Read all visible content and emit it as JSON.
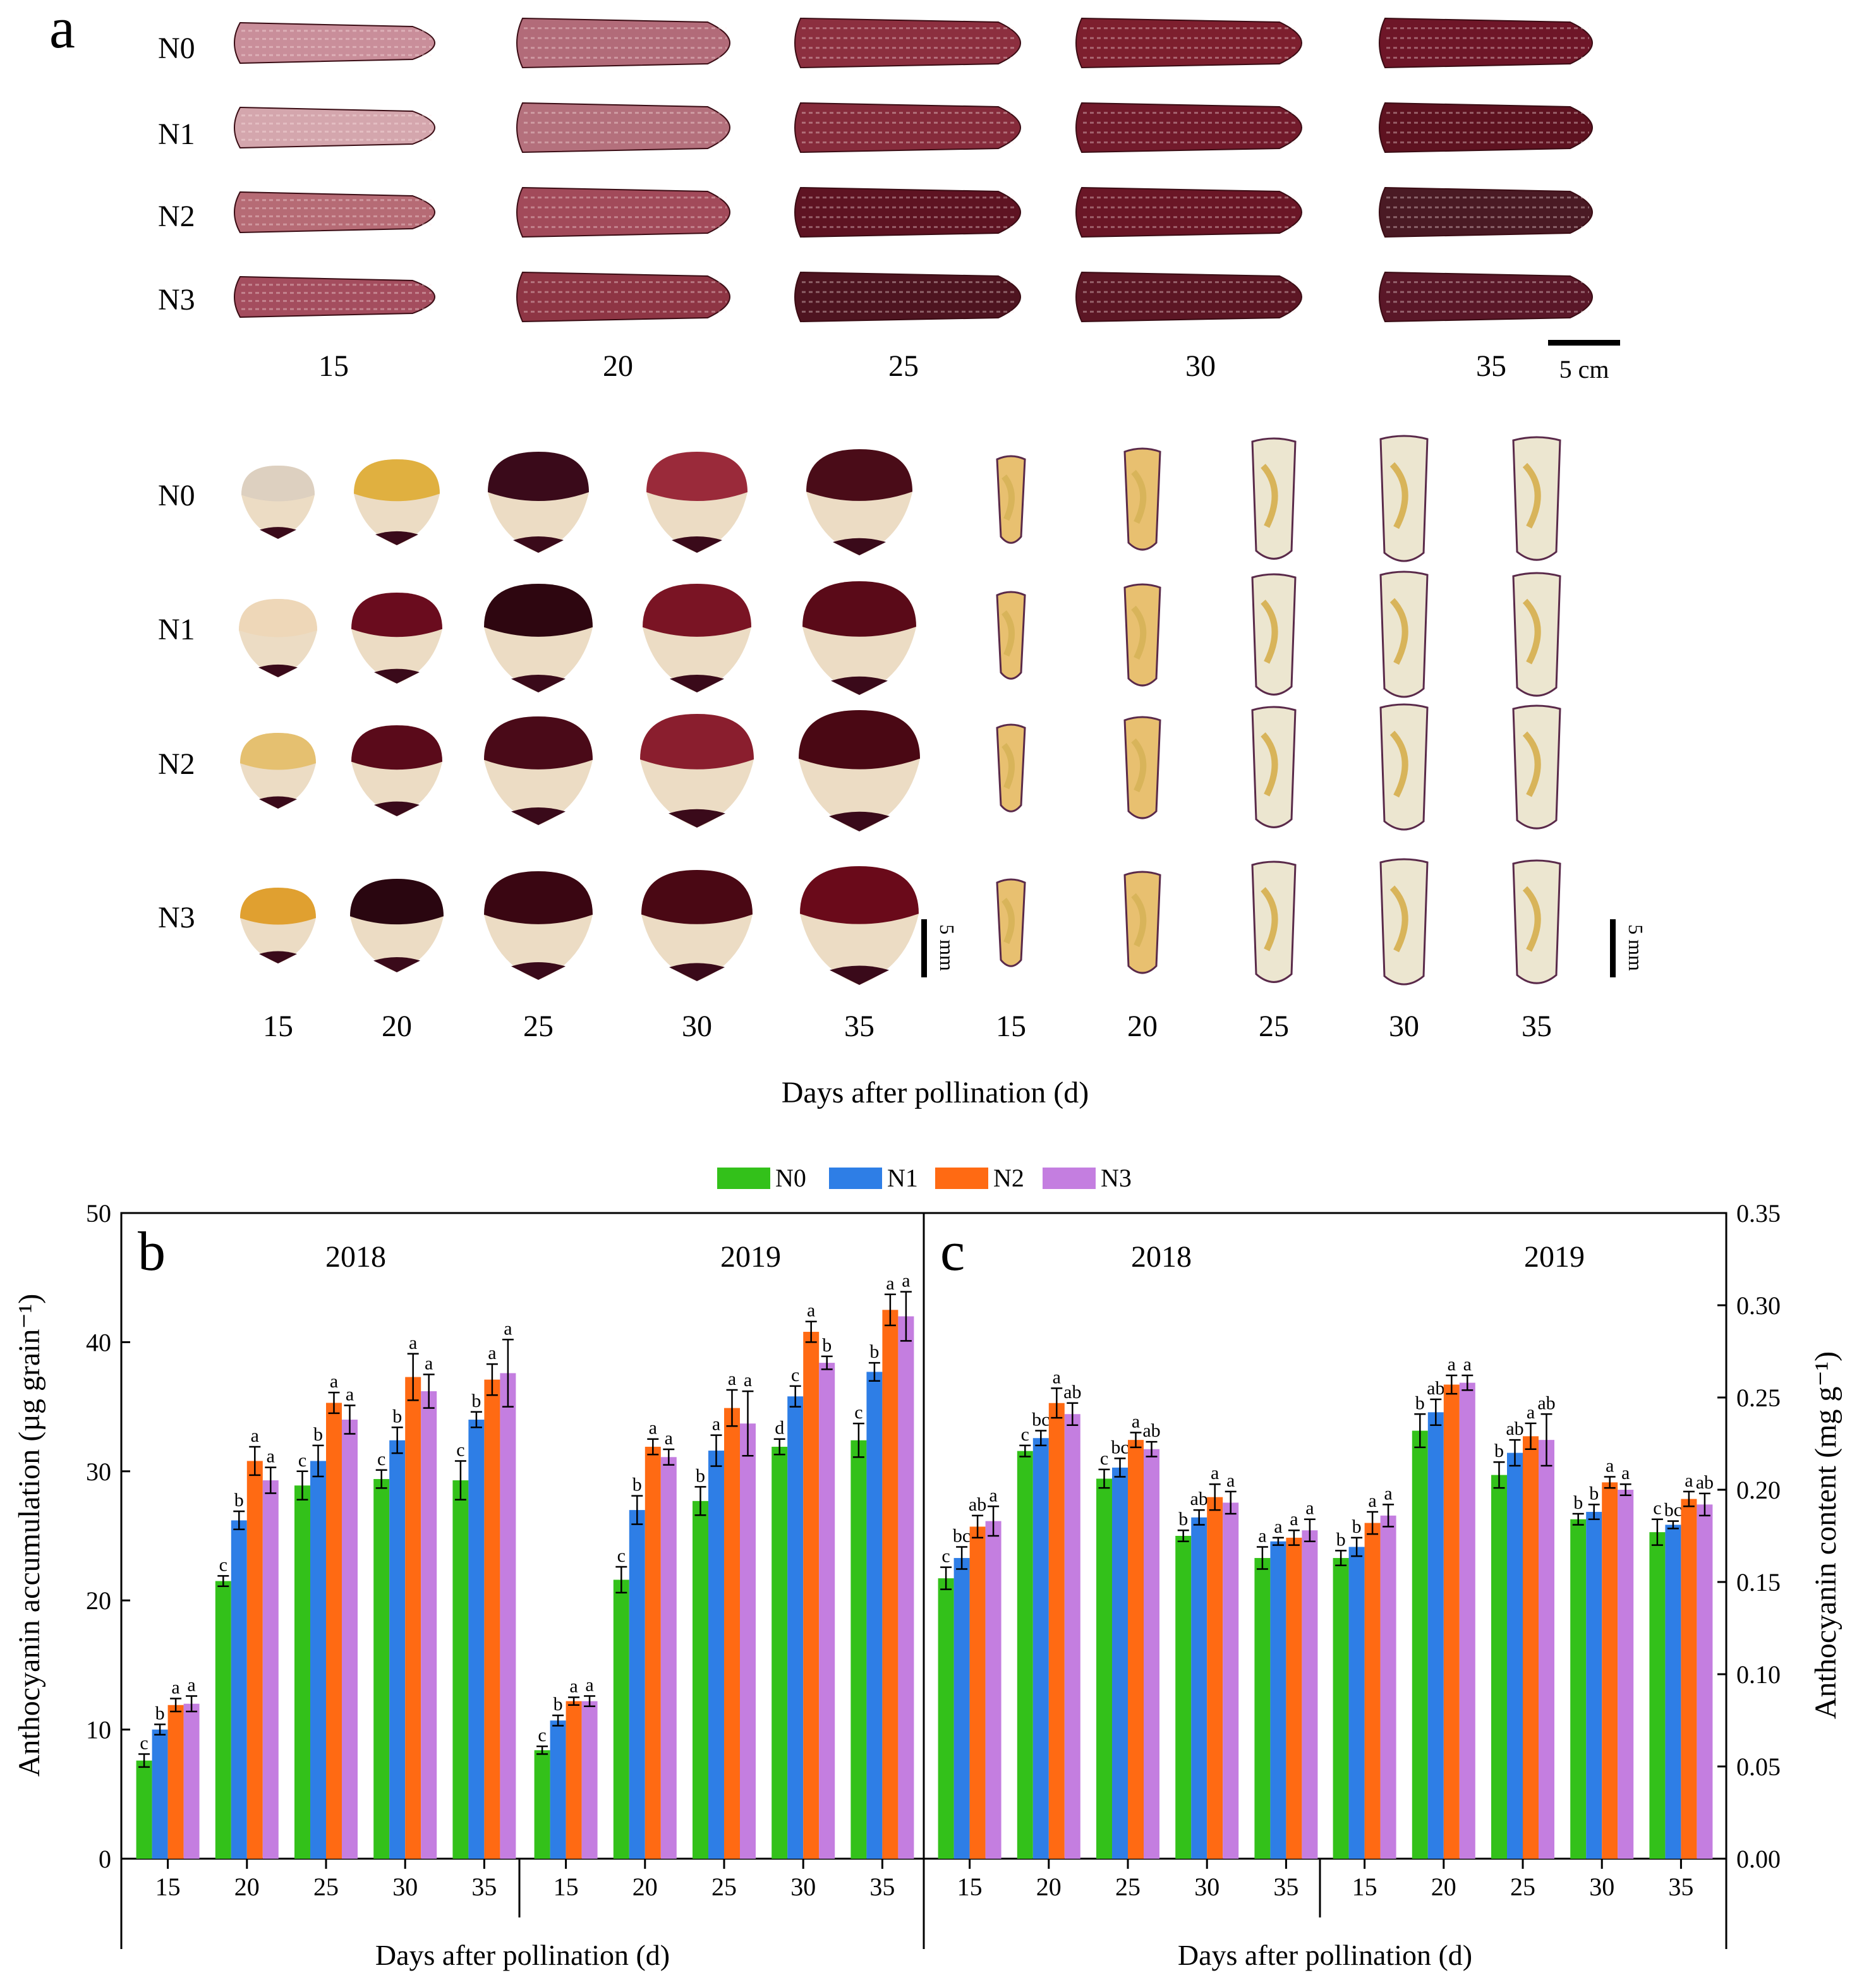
{
  "colors": {
    "N0": "#33c11a",
    "N1": "#2e7ee6",
    "N2": "#ff6a13",
    "N3": "#c47ee0"
  },
  "panel_a": {
    "letter": "a",
    "rows": [
      "N0",
      "N1",
      "N2",
      "N3"
    ],
    "days": [
      "15",
      "20",
      "25",
      "30",
      "35"
    ],
    "ear_scale": "5 cm",
    "kernel_scale": "5 mm",
    "xlabel": "Days after pollination (d)"
  },
  "legend": [
    "N0",
    "N1",
    "N2",
    "N3"
  ],
  "chart_data": [
    {
      "type": "bar",
      "panel": "b",
      "ylabel": "Anthocyanin accumulation  (µg grain⁻¹)",
      "xlabel": "Days after pollination (d)",
      "ylim": [
        0,
        50
      ],
      "yticks": [
        "0",
        "10",
        "20",
        "30",
        "40",
        "50"
      ],
      "groups": [
        {
          "year": "2018",
          "categories": [
            "15",
            "20",
            "25",
            "30",
            "35"
          ],
          "series": [
            {
              "name": "N0",
              "values": [
                7.6,
                21.5,
                28.9,
                29.4,
                29.3
              ],
              "errors": [
                0.5,
                0.4,
                1.1,
                0.7,
                1.5
              ],
              "letters": [
                "c",
                "c",
                "c",
                "c",
                "c"
              ]
            },
            {
              "name": "N1",
              "values": [
                10.0,
                26.2,
                30.8,
                32.4,
                34.0
              ],
              "errors": [
                0.4,
                0.7,
                1.2,
                1.0,
                0.6
              ],
              "letters": [
                "b",
                "b",
                "b",
                "b",
                "b"
              ]
            },
            {
              "name": "N2",
              "values": [
                11.9,
                30.8,
                35.3,
                37.3,
                37.1
              ],
              "errors": [
                0.5,
                1.1,
                0.8,
                1.8,
                1.2
              ],
              "letters": [
                "a",
                "a",
                "a",
                "a",
                "a"
              ]
            },
            {
              "name": "N3",
              "values": [
                12.0,
                29.3,
                34.0,
                36.2,
                37.6
              ],
              "errors": [
                0.6,
                1.0,
                1.1,
                1.3,
                2.6
              ],
              "letters": [
                "a",
                "a",
                "a",
                "a",
                "a"
              ]
            }
          ]
        },
        {
          "year": "2019",
          "categories": [
            "15",
            "20",
            "25",
            "30",
            "35"
          ],
          "series": [
            {
              "name": "N0",
              "values": [
                8.4,
                21.6,
                27.7,
                31.9,
                32.4
              ],
              "errors": [
                0.3,
                1.0,
                1.1,
                0.6,
                1.3
              ],
              "letters": [
                "c",
                "c",
                "b",
                "d",
                "c"
              ]
            },
            {
              "name": "N1",
              "values": [
                10.7,
                27.0,
                31.6,
                35.8,
                37.7
              ],
              "errors": [
                0.4,
                1.1,
                1.2,
                0.8,
                0.7
              ],
              "letters": [
                "b",
                "b",
                "a",
                "c",
                "b"
              ]
            },
            {
              "name": "N2",
              "values": [
                12.2,
                31.9,
                34.9,
                40.8,
                42.5
              ],
              "errors": [
                0.3,
                0.6,
                1.4,
                0.8,
                1.2
              ],
              "letters": [
                "a",
                "a",
                "a",
                "a",
                "a"
              ]
            },
            {
              "name": "N3",
              "values": [
                12.2,
                31.1,
                33.7,
                38.4,
                42.0
              ],
              "errors": [
                0.4,
                0.6,
                2.5,
                0.5,
                1.9
              ],
              "letters": [
                "a",
                "a",
                "a",
                "b",
                "a"
              ]
            }
          ]
        }
      ]
    },
    {
      "type": "bar",
      "panel": "c",
      "ylabel": "Anthocyanin content (mg g⁻¹)",
      "xlabel": "Days after pollination (d)",
      "ylim": [
        0,
        0.35
      ],
      "yticks": [
        "0.00",
        "0.05",
        "0.10",
        "0.15",
        "0.20",
        "0.25",
        "0.30",
        "0.35"
      ],
      "groups": [
        {
          "year": "2018",
          "categories": [
            "15",
            "20",
            "25",
            "30",
            "35"
          ],
          "series": [
            {
              "name": "N0",
              "values": [
                0.152,
                0.221,
                0.206,
                0.175,
                0.163
              ],
              "errors": [
                0.006,
                0.003,
                0.005,
                0.003,
                0.006
              ],
              "letters": [
                "c",
                "c",
                "c",
                "b",
                "a"
              ]
            },
            {
              "name": "N1",
              "values": [
                0.163,
                0.228,
                0.212,
                0.185,
                0.172
              ],
              "errors": [
                0.006,
                0.004,
                0.005,
                0.004,
                0.002
              ],
              "letters": [
                "bc",
                "bc",
                "bc",
                "ab",
                "a"
              ]
            },
            {
              "name": "N2",
              "values": [
                0.18,
                0.247,
                0.227,
                0.196,
                0.174
              ],
              "errors": [
                0.006,
                0.008,
                0.004,
                0.007,
                0.004
              ],
              "letters": [
                "ab",
                "a",
                "a",
                "a",
                "a"
              ]
            },
            {
              "name": "N3",
              "values": [
                0.183,
                0.241,
                0.222,
                0.193,
                0.178
              ],
              "errors": [
                0.008,
                0.006,
                0.004,
                0.006,
                0.006
              ],
              "letters": [
                "a",
                "ab",
                "ab",
                "a",
                "a"
              ]
            }
          ]
        },
        {
          "year": "2019",
          "categories": [
            "15",
            "20",
            "25",
            "30",
            "35"
          ],
          "series": [
            {
              "name": "N0",
              "values": [
                0.163,
                0.232,
                0.208,
                0.184,
                0.177
              ],
              "errors": [
                0.004,
                0.009,
                0.007,
                0.003,
                0.007
              ],
              "letters": [
                "b",
                "b",
                "b",
                "b",
                "c"
              ]
            },
            {
              "name": "N1",
              "values": [
                0.169,
                0.242,
                0.22,
                0.188,
                0.181
              ],
              "errors": [
                0.005,
                0.007,
                0.007,
                0.004,
                0.002
              ],
              "letters": [
                "b",
                "ab",
                "ab",
                "b",
                "bc"
              ]
            },
            {
              "name": "N2",
              "values": [
                0.182,
                0.257,
                0.229,
                0.204,
                0.195
              ],
              "errors": [
                0.006,
                0.005,
                0.007,
                0.003,
                0.004
              ],
              "letters": [
                "a",
                "a",
                "a",
                "a",
                "a"
              ]
            },
            {
              "name": "N3",
              "values": [
                0.186,
                0.258,
                0.227,
                0.2,
                0.192
              ],
              "errors": [
                0.006,
                0.004,
                0.014,
                0.003,
                0.006
              ],
              "letters": [
                "a",
                "a",
                "ab",
                "a",
                "ab"
              ]
            }
          ]
        }
      ]
    }
  ]
}
